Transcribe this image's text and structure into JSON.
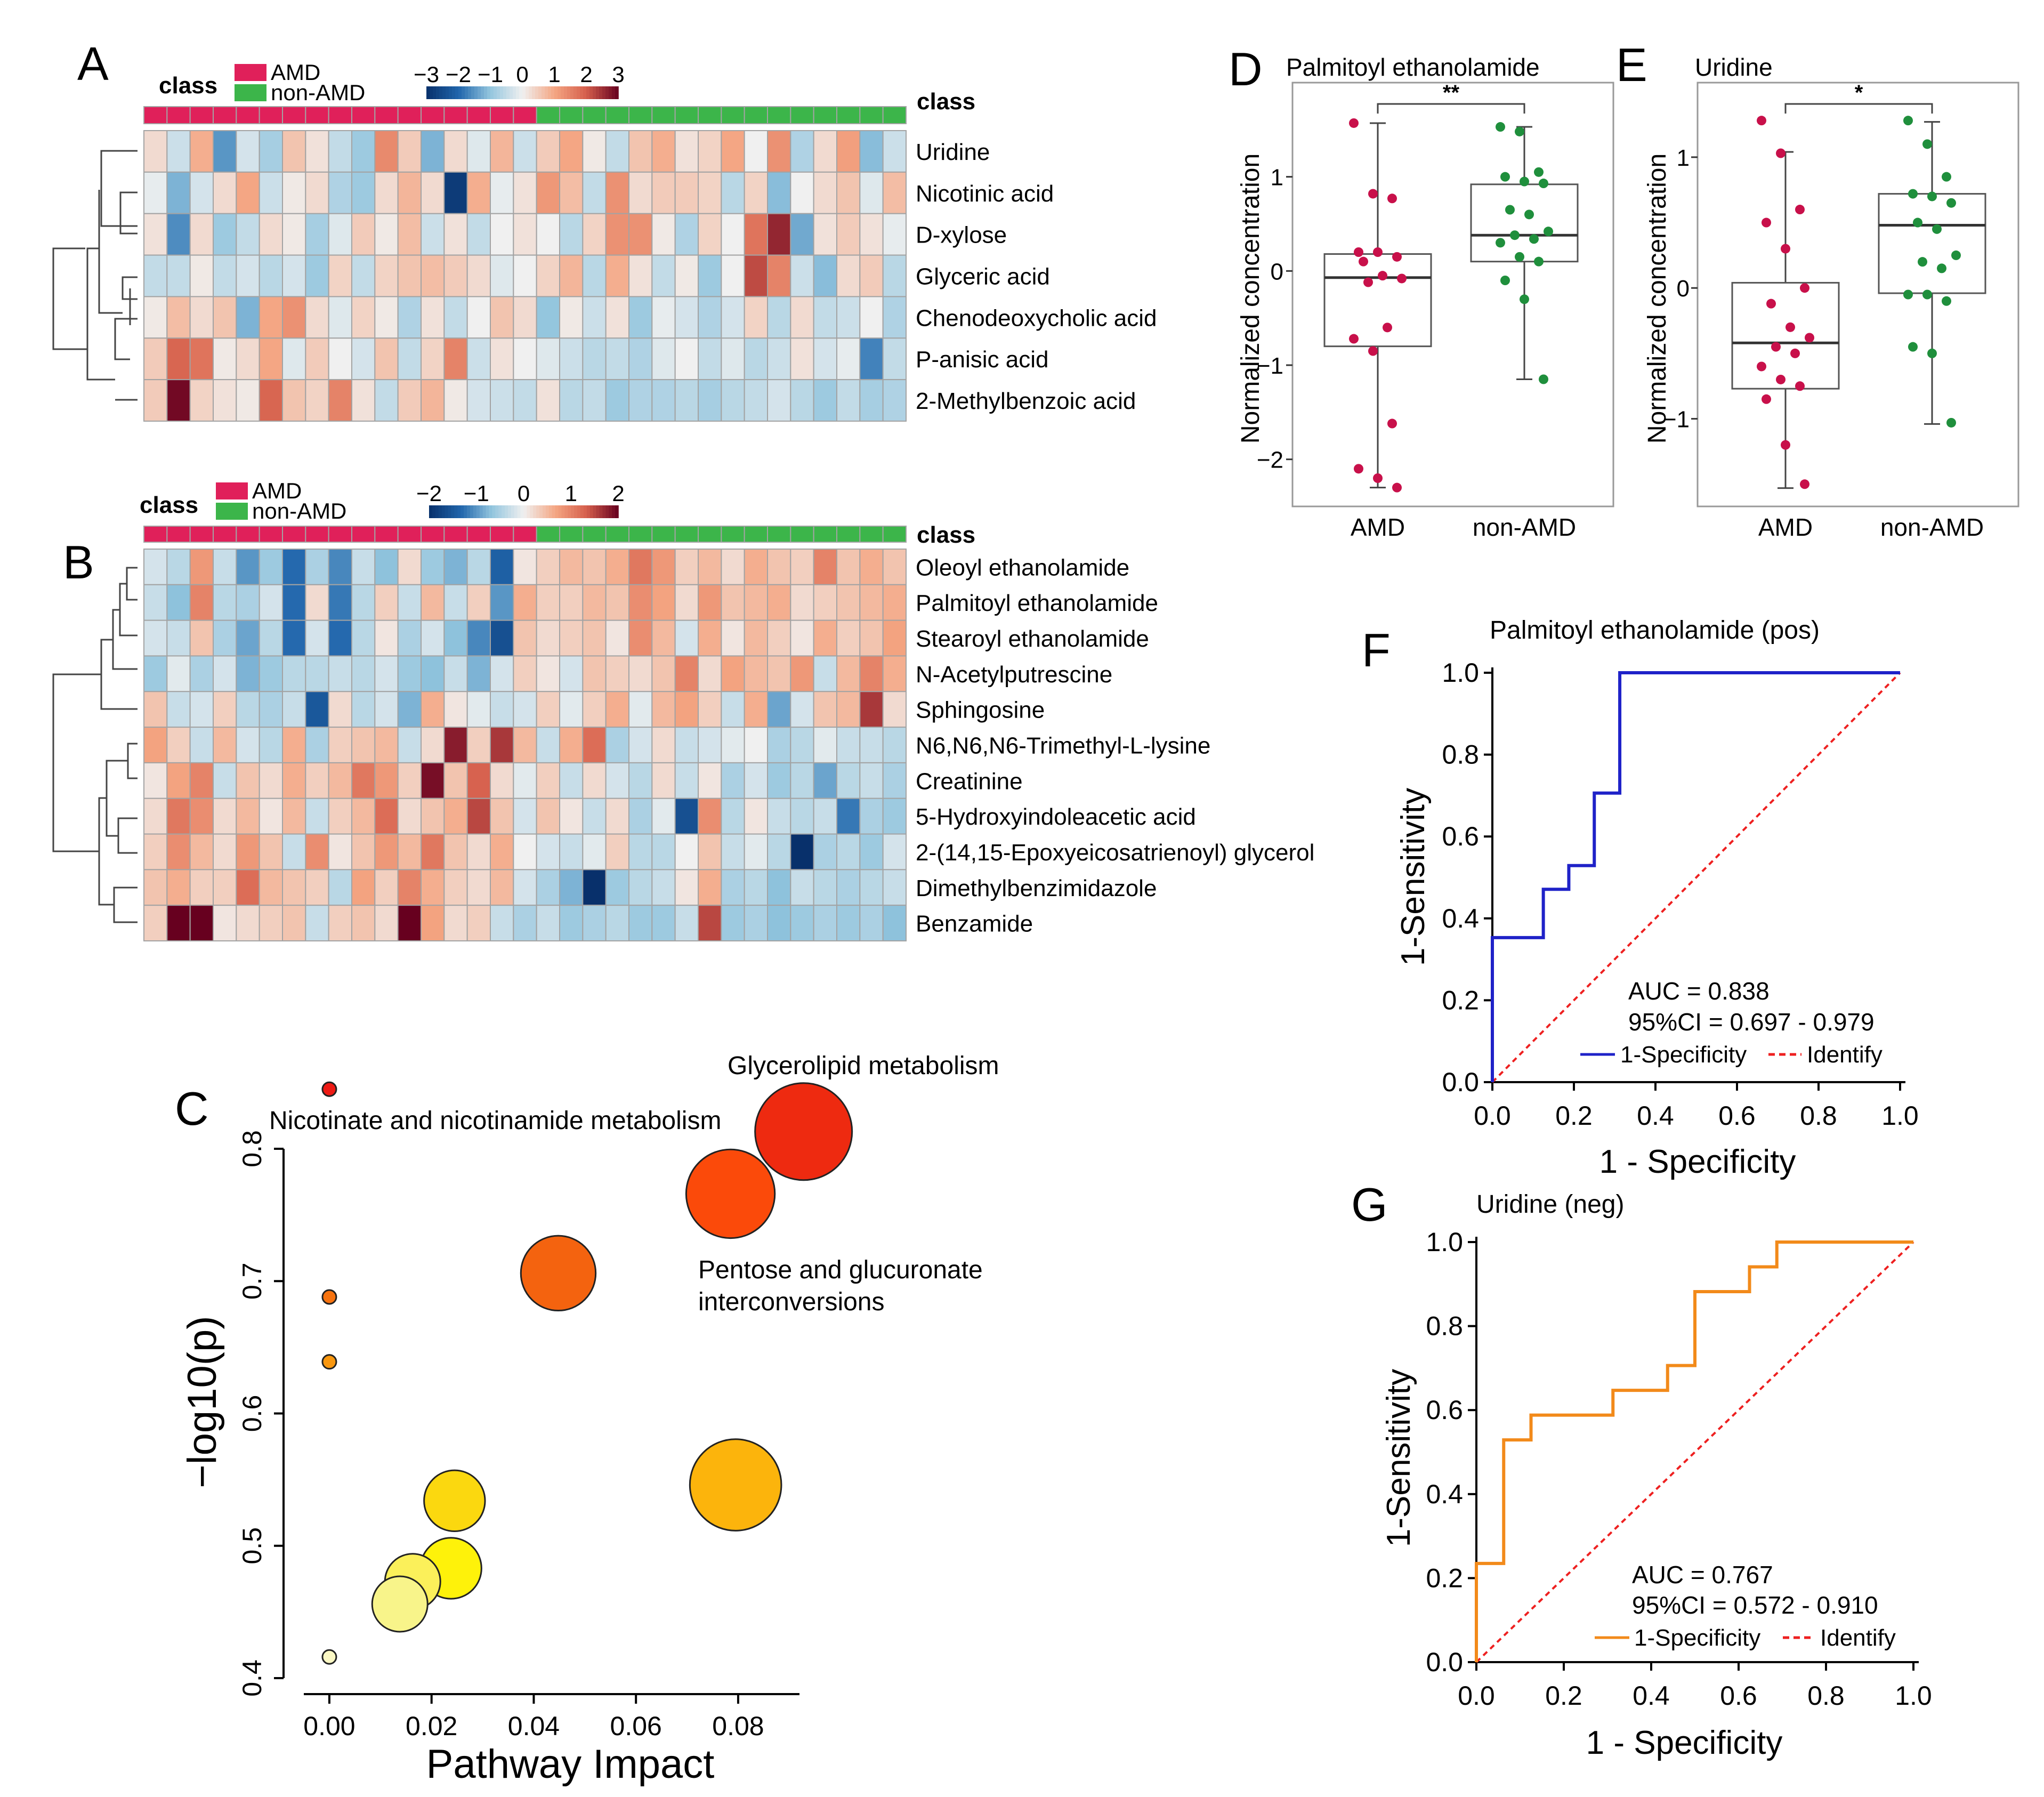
{
  "colors": {
    "amd": "#e0205a",
    "non_amd": "#3cb54a",
    "cell_border": "#a3a3a3",
    "roc_pos": "#1f22c8",
    "roc_neg": "#f28a1a",
    "identity": "#ee2020",
    "point_amd": "#c8104a",
    "point_non_amd": "#1f8f3c"
  },
  "panel_labels": [
    "A",
    "B",
    "C",
    "D",
    "E",
    "F",
    "G"
  ],
  "heatmap_a": {
    "class_label": "class",
    "legend_title": "class",
    "legend_items": [
      "AMD",
      "non-AMD"
    ],
    "scale_ticks": [
      "−3",
      "−2",
      "−1",
      "0",
      "1",
      "2",
      "3"
    ],
    "scale_range": [
      -3,
      3
    ],
    "n_amd": 17,
    "n_non_amd": 16,
    "rows": [
      "Uridine",
      "Nicotinic acid",
      "D-xylose",
      "Glyceric acid",
      "Chenodeoxycholic acid",
      "P-anisic acid",
      "2-Methylbenzoic acid"
    ],
    "values": [
      [
        0.3,
        -0.4,
        0.9,
        -1.5,
        -0.3,
        -0.8,
        0.6,
        0.2,
        -0.5,
        -0.9,
        1.4,
        0.5,
        -1.2,
        0.3,
        -0.2,
        0.8,
        -0.4,
        0.5,
        1.0,
        0.1,
        -0.5,
        0.6,
        0.9,
        0.2,
        0.4,
        1.0,
        0.0,
        1.3,
        -0.7,
        0.3,
        1.1,
        -1.1,
        -0.4
      ],
      [
        -0.1,
        -1.2,
        -0.3,
        0.3,
        1.0,
        -0.4,
        0.1,
        0.3,
        -0.7,
        -0.9,
        0.3,
        0.8,
        0.3,
        -2.8,
        0.9,
        -0.1,
        0.2,
        1.2,
        0.7,
        -0.5,
        1.3,
        0.3,
        0.5,
        0.5,
        0.4,
        -0.6,
        0.4,
        -1.1,
        0.0,
        0.3,
        0.6,
        -0.2,
        0.7
      ],
      [
        0.2,
        -1.6,
        0.3,
        -0.9,
        -0.5,
        0.3,
        0.1,
        -0.8,
        -0.2,
        0.5,
        0.1,
        0.7,
        -0.4,
        0.2,
        -0.5,
        0.0,
        0.2,
        0.0,
        -0.6,
        0.4,
        1.3,
        1.3,
        0.1,
        -0.7,
        0.4,
        0.0,
        1.7,
        2.6,
        -1.3,
        0.2,
        0.5,
        0.2,
        -0.1
      ],
      [
        -0.5,
        -0.5,
        0.1,
        -0.5,
        -0.3,
        -0.6,
        -0.3,
        -0.9,
        0.4,
        -0.5,
        0.4,
        0.6,
        0.7,
        0.5,
        0.3,
        -0.2,
        0.0,
        0.4,
        0.8,
        -0.6,
        0.9,
        0.2,
        -0.5,
        0.1,
        -0.9,
        0.0,
        2.2,
        1.5,
        -0.4,
        -1.1,
        0.3,
        0.5,
        -0.6
      ],
      [
        0.1,
        0.7,
        0.3,
        0.6,
        -1.2,
        1.0,
        1.3,
        0.3,
        -0.2,
        0.4,
        0.1,
        -0.7,
        0.2,
        -0.5,
        0.0,
        0.6,
        0.3,
        -1.0,
        0.1,
        -0.4,
        0.2,
        -0.9,
        -0.1,
        -0.3,
        -0.7,
        -0.3,
        0.4,
        -0.6,
        0.3,
        -0.5,
        -0.4,
        0.0,
        -0.7
      ],
      [
        0.5,
        1.9,
        1.7,
        0.1,
        0.3,
        1.0,
        -0.2,
        0.5,
        0.0,
        -0.3,
        0.6,
        -0.5,
        0.4,
        1.5,
        -0.4,
        0.2,
        0.0,
        -0.2,
        -0.4,
        -0.6,
        -0.5,
        -0.7,
        -0.2,
        0.0,
        -0.5,
        -0.2,
        -0.6,
        -0.4,
        0.2,
        -0.3,
        -0.1,
        -1.7,
        -0.5
      ],
      [
        0.5,
        2.9,
        0.4,
        0.2,
        0.1,
        1.9,
        0.6,
        0.4,
        1.5,
        0.2,
        -0.5,
        0.5,
        0.8,
        0.1,
        -0.3,
        -0.4,
        -0.5,
        0.2,
        -0.6,
        -0.5,
        -0.9,
        -0.7,
        -0.7,
        -0.6,
        -0.8,
        -0.6,
        -0.5,
        -0.3,
        -0.6,
        -0.9,
        -0.5,
        -0.8,
        -0.7
      ]
    ]
  },
  "heatmap_b": {
    "class_label": "class",
    "legend_title": "class",
    "legend_items": [
      "AMD",
      "non-AMD"
    ],
    "scale_ticks": [
      "−2",
      "−1",
      "0",
      "1",
      "2"
    ],
    "scale_range": [
      -2,
      2
    ],
    "n_amd": 17,
    "n_non_amd": 16,
    "rows": [
      "Oleoyl ethanolamide",
      "Palmitoyl ethanolamide",
      "Stearoyl ethanolamide",
      "N-Acetylputrescine",
      "Sphingosine",
      "N6,N6,N6-Trimethyl-L-lysine",
      "Creatinine",
      "5-Hydroxyindoleacetic acid",
      "2-(14,15-Epoxyeicosatrienoyl) glycerol",
      "Dimethylbenzimidazole",
      "Benzamide"
    ],
    "values": [
      [
        -0.2,
        -0.4,
        0.8,
        -0.3,
        -1.0,
        -0.6,
        -1.3,
        -0.5,
        -1.1,
        -0.3,
        -0.7,
        0.2,
        -0.6,
        -0.8,
        -0.4,
        -1.4,
        0.1,
        0.3,
        0.5,
        0.4,
        0.6,
        1.1,
        0.8,
        0.3,
        0.5,
        0.2,
        0.6,
        0.4,
        0.3,
        1.0,
        0.4,
        0.6,
        0.4
      ],
      [
        -0.3,
        -0.7,
        1.0,
        -0.4,
        -0.5,
        -0.2,
        -1.3,
        0.2,
        -1.2,
        -0.4,
        0.3,
        -0.3,
        0.5,
        -0.3,
        0.3,
        -1.0,
        0.6,
        0.3,
        0.3,
        0.5,
        0.4,
        0.9,
        0.7,
        0.2,
        0.8,
        0.4,
        0.5,
        0.6,
        0.2,
        0.3,
        0.4,
        0.5,
        0.6
      ],
      [
        -0.2,
        -0.3,
        0.4,
        -0.5,
        -0.9,
        -0.4,
        -1.3,
        -0.2,
        -1.3,
        -0.4,
        0.1,
        -0.5,
        -0.2,
        -0.7,
        -1.1,
        -1.6,
        0.4,
        0.2,
        0.3,
        0.4,
        0.1,
        0.9,
        0.5,
        -0.2,
        0.6,
        0.1,
        0.5,
        0.3,
        0.1,
        0.6,
        0.3,
        0.4,
        0.7
      ],
      [
        -0.6,
        -0.1,
        -0.5,
        -0.2,
        -0.8,
        -0.6,
        -0.4,
        -0.4,
        -0.3,
        -0.4,
        -0.2,
        -0.6,
        -0.7,
        -0.3,
        -0.8,
        -0.2,
        0.3,
        0.1,
        -0.2,
        0.4,
        0.3,
        0.2,
        0.4,
        1.0,
        0.2,
        0.7,
        0.5,
        0.4,
        0.8,
        -0.3,
        0.5,
        1.0,
        0.6
      ],
      [
        0.4,
        -0.3,
        -0.2,
        0.3,
        -0.4,
        -0.5,
        -0.3,
        -1.5,
        0.2,
        -0.4,
        -0.2,
        -0.8,
        0.6,
        0.1,
        -0.1,
        -0.3,
        -0.2,
        0.3,
        -0.1,
        0.3,
        0.6,
        -0.1,
        0.5,
        0.7,
        0.3,
        -0.3,
        0.6,
        -0.9,
        -0.2,
        0.4,
        0.5,
        1.6,
        0.2
      ],
      [
        0.7,
        0.3,
        -0.3,
        0.5,
        -0.2,
        -0.4,
        0.6,
        -0.5,
        0.3,
        0.4,
        0.5,
        -0.3,
        0.2,
        1.8,
        0.3,
        1.6,
        0.5,
        -0.3,
        0.6,
        1.2,
        -0.5,
        -0.2,
        0.2,
        -0.3,
        -0.2,
        -0.1,
        0.0,
        -0.5,
        -0.4,
        -0.1,
        -0.3,
        -0.3,
        -0.4
      ],
      [
        0.1,
        0.7,
        1.0,
        -0.3,
        0.4,
        0.2,
        0.6,
        0.3,
        0.5,
        1.1,
        0.8,
        0.3,
        1.9,
        0.4,
        1.3,
        0.2,
        -0.1,
        0.3,
        -0.3,
        0.2,
        -0.2,
        -0.4,
        0.2,
        -0.3,
        0.1,
        -0.5,
        -0.2,
        -0.6,
        -0.4,
        -0.9,
        -0.4,
        -0.3,
        -0.5
      ],
      [
        0.2,
        1.1,
        0.9,
        0.2,
        0.5,
        0.1,
        0.5,
        -0.3,
        0.3,
        0.5,
        1.2,
        0.2,
        0.4,
        0.6,
        1.5,
        0.4,
        -0.2,
        0.4,
        0.1,
        -0.3,
        0.2,
        -0.5,
        -0.1,
        -1.6,
        0.9,
        -0.4,
        0.1,
        -0.3,
        -0.4,
        -0.3,
        -1.2,
        -0.5,
        -0.6
      ],
      [
        0.3,
        0.9,
        0.5,
        0.2,
        0.8,
        0.4,
        -0.3,
        0.9,
        0.1,
        0.4,
        0.8,
        0.5,
        1.1,
        0.4,
        0.2,
        0.6,
        0.0,
        -0.2,
        -0.3,
        -0.1,
        0.3,
        -0.4,
        -0.4,
        0.0,
        0.4,
        -0.3,
        -0.1,
        -0.4,
        -2.0,
        -0.5,
        -0.4,
        -0.6,
        -0.2
      ],
      [
        0.4,
        0.6,
        0.3,
        0.3,
        1.2,
        0.5,
        0.4,
        0.3,
        -0.4,
        0.7,
        0.3,
        1.0,
        0.6,
        0.3,
        0.2,
        0.5,
        -0.2,
        -0.5,
        -0.8,
        -2.0,
        -0.6,
        -0.4,
        -0.3,
        0.1,
        0.6,
        -0.5,
        -0.4,
        -0.7,
        -0.3,
        -0.4,
        -0.5,
        -0.4,
        -0.3
      ],
      [
        0.3,
        2.1,
        2.1,
        0.1,
        0.2,
        0.3,
        0.4,
        -0.3,
        0.3,
        0.4,
        0.2,
        2.0,
        0.7,
        0.2,
        0.3,
        -0.3,
        -0.5,
        -0.3,
        -0.6,
        -0.5,
        -0.4,
        -0.6,
        -0.6,
        -0.3,
        1.5,
        -0.6,
        -0.5,
        -0.7,
        -0.6,
        -0.5,
        -0.6,
        -0.5,
        -0.7
      ]
    ]
  },
  "chart_data": [
    {
      "type": "scatter",
      "panel": "C",
      "xlabel": "Pathway Impact",
      "ylabel": "−log10(p)",
      "xlim": [
        -0.005,
        0.092
      ],
      "ylim": [
        0.4,
        0.8
      ],
      "x_ticks": [
        0,
        0.02,
        0.04,
        0.06,
        0.08
      ],
      "x_tick_labels": [
        "0.00",
        "0.02",
        "0.04",
        "0.06",
        "0.08"
      ],
      "y_ticks": [
        0.4,
        0.5,
        0.6,
        0.7,
        0.8
      ],
      "y_tick_labels": [
        "0.4",
        "0.5",
        "0.6",
        "0.7",
        "0.8"
      ],
      "points": [
        {
          "x": 0.0,
          "y": 0.845,
          "r": 0.05,
          "color": "#ee1a14"
        },
        {
          "x": 0.0928,
          "y": 0.813,
          "r": 0.35,
          "color": "#ee2a10"
        },
        {
          "x": 0.0785,
          "y": 0.766,
          "r": 0.32,
          "color": "#fb4a0a"
        },
        {
          "x": 0.0448,
          "y": 0.706,
          "r": 0.27,
          "color": "#f4630f"
        },
        {
          "x": 0.0,
          "y": 0.688,
          "r": 0.05,
          "color": "#f7730f"
        },
        {
          "x": 0.0,
          "y": 0.639,
          "r": 0.05,
          "color": "#f9970f"
        },
        {
          "x": 0.0795,
          "y": 0.546,
          "r": 0.33,
          "color": "#fcb40c"
        },
        {
          "x": 0.0245,
          "y": 0.534,
          "r": 0.22,
          "color": "#fbd80f"
        },
        {
          "x": 0.0238,
          "y": 0.483,
          "r": 0.22,
          "color": "#fef20a"
        },
        {
          "x": 0.0163,
          "y": 0.473,
          "r": 0.2,
          "color": "#fbf05a"
        },
        {
          "x": 0.0138,
          "y": 0.456,
          "r": 0.2,
          "color": "#f8f48a"
        },
        {
          "x": 0.0,
          "y": 0.416,
          "r": 0.05,
          "color": "#fbf8c4"
        }
      ],
      "annotations": [
        "Nicotinate and nicotinamide metabolism",
        "Glycerolipid metabolism",
        "Pentose and glucuronate",
        "interconversions"
      ]
    },
    {
      "type": "box",
      "panel": "D",
      "title": "Palmitoyl ethanolamide",
      "ylabel": "Normalized concentration",
      "categories": [
        "AMD",
        "non-AMD"
      ],
      "ylim": [
        -2.5,
        2.0
      ],
      "y_ticks": [
        -2,
        -1,
        0,
        1
      ],
      "y_tick_labels": [
        "−2",
        "−1",
        "0",
        "1"
      ],
      "significance": "**",
      "boxes": [
        {
          "q1": -0.8,
          "median": -0.07,
          "q3": 0.18,
          "whisker_low": -2.3,
          "whisker_high": 1.57
        },
        {
          "q1": 0.1,
          "median": 0.38,
          "q3": 0.92,
          "whisker_low": -1.15,
          "whisker_high": 1.53
        }
      ],
      "points": [
        [
          1.57,
          0.82,
          0.77,
          0.2,
          0.2,
          0.15,
          0.1,
          -0.05,
          -0.08,
          -0.12,
          -0.6,
          -0.72,
          -0.85,
          -1.62,
          -2.1,
          -2.2,
          -2.3
        ],
        [
          1.53,
          1.48,
          1.05,
          1.0,
          0.95,
          0.93,
          0.65,
          0.6,
          0.42,
          0.38,
          0.34,
          0.3,
          0.15,
          0.1,
          -0.1,
          -0.3,
          -1.15
        ]
      ]
    },
    {
      "type": "box",
      "panel": "E",
      "title": "Uridine",
      "ylabel": "Normalized concentration",
      "categories": [
        "AMD",
        "non-AMD"
      ],
      "ylim": [
        -1.67,
        1.57
      ],
      "y_ticks": [
        -1,
        0,
        1
      ],
      "y_tick_labels": [
        "−1",
        "0",
        "1"
      ],
      "significance": "*",
      "boxes": [
        {
          "q1": -0.77,
          "median": -0.42,
          "q3": 0.04,
          "whisker_low": -1.53,
          "whisker_high": 1.04
        },
        {
          "q1": -0.04,
          "median": 0.48,
          "q3": 0.72,
          "whisker_low": -1.04,
          "whisker_high": 1.27
        }
      ],
      "points": [
        [
          1.28,
          1.03,
          0.6,
          0.5,
          0.3,
          0.0,
          -0.12,
          -0.3,
          -0.38,
          -0.45,
          -0.5,
          -0.6,
          -0.7,
          -0.75,
          -0.85,
          -1.2,
          -1.5
        ],
        [
          1.28,
          1.1,
          0.85,
          0.72,
          0.7,
          0.65,
          0.5,
          0.45,
          0.25,
          0.2,
          0.15,
          -0.05,
          -0.05,
          -0.1,
          -0.45,
          -0.5,
          -1.03
        ]
      ]
    },
    {
      "type": "line",
      "panel": "F",
      "title": "Palmitoyl ethanolamide (pos)",
      "xlabel": "1 - Specificity",
      "ylabel": "1-Sensitivity",
      "xlim": [
        0,
        1
      ],
      "ylim": [
        0,
        1
      ],
      "ticks": [
        "0.0",
        "0.2",
        "0.4",
        "0.6",
        "0.8",
        "1.0"
      ],
      "auc": "AUC = 0.838",
      "ci": "95%CI = 0.697 - 0.979",
      "legend": [
        "1-Specificity",
        "Identify"
      ],
      "series": [
        {
          "name": "1-Specificity",
          "x": [
            0,
            0,
            0.125,
            0.125,
            0.1875,
            0.1875,
            0.25,
            0.25,
            0.3125,
            0.3125,
            1.0
          ],
          "y": [
            0,
            0.353,
            0.353,
            0.471,
            0.471,
            0.529,
            0.529,
            0.706,
            0.706,
            1.0,
            1.0
          ]
        },
        {
          "name": "Identify",
          "x": [
            0,
            1
          ],
          "y": [
            0,
            1
          ]
        }
      ]
    },
    {
      "type": "line",
      "panel": "G",
      "title": "Uridine (neg)",
      "xlabel": "1 - Specificity",
      "ylabel": "1-Sensitivity",
      "xlim": [
        0,
        1
      ],
      "ylim": [
        0,
        1
      ],
      "ticks": [
        "0.0",
        "0.2",
        "0.4",
        "0.6",
        "0.8",
        "1.0"
      ],
      "auc": "AUC = 0.767",
      "ci": "95%CI = 0.572 - 0.910",
      "legend": [
        "1-Specificity",
        "Identify"
      ],
      "series": [
        {
          "name": "1-Specificity",
          "x": [
            0,
            0,
            0.0625,
            0.0625,
            0.125,
            0.125,
            0.3125,
            0.3125,
            0.4375,
            0.4375,
            0.5,
            0.5,
            0.5625,
            0.5625,
            0.625,
            0.625,
            0.6875,
            0.6875,
            1.0
          ],
          "y": [
            0,
            0.235,
            0.235,
            0.529,
            0.529,
            0.588,
            0.588,
            0.647,
            0.647,
            0.706,
            0.706,
            0.882,
            0.882,
            0.882,
            0.882,
            0.941,
            0.941,
            1.0,
            1.0
          ]
        },
        {
          "name": "Identify",
          "x": [
            0,
            1
          ],
          "y": [
            0,
            1
          ]
        }
      ]
    }
  ]
}
